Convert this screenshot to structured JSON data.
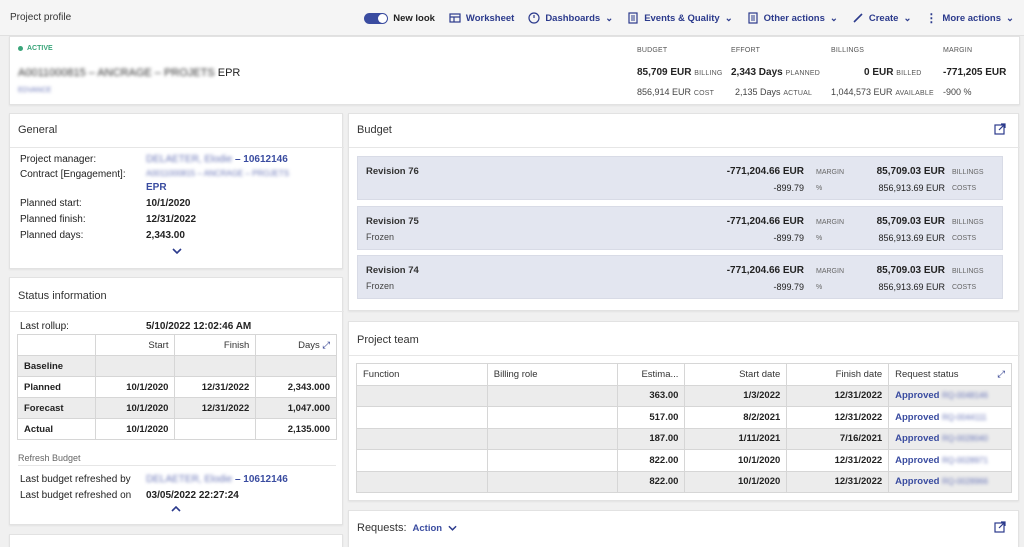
{
  "page": {
    "title": "Project profile"
  },
  "toolbar": {
    "new_look": "New look",
    "worksheet": "Worksheet",
    "dashboards": "Dashboards",
    "events_quality": "Events & Quality",
    "other_actions": "Other actions",
    "create": "Create",
    "more_actions": "More actions"
  },
  "header": {
    "status": "ACTIVE",
    "project_code": "A0011000815 – ANCRAGE – PROJETS",
    "project_suffix": "EPR",
    "sub_link": "EDVANCE",
    "kpis": {
      "budget_label": "BUDGET",
      "budget_value": "85,709 EUR",
      "budget_unit": "BILLING",
      "budget_value2": "856,914 EUR",
      "budget_unit2": "COST",
      "effort_label": "EFFORT",
      "effort_value": "2,343 Days",
      "effort_unit": "PLANNED",
      "effort_value2": "2,135 Days",
      "effort_unit2": "ACTUAL",
      "billings_label": "BILLINGS",
      "billings_value": "0 EUR",
      "billings_unit": "BILLED",
      "billings_value2": "1,044,573 EUR",
      "billings_unit2": "AVAILABLE",
      "margin_label": "MARGIN",
      "margin_value": "-771,205 EUR",
      "margin_value2": "-900 %"
    }
  },
  "general": {
    "title": "General",
    "project_manager_label": "Project manager:",
    "project_manager_name": "DELAETER, Elodie",
    "project_manager_id": "– 10612146",
    "contract_label": "Contract [Engagement]:",
    "contract_value": "A0011000815 – ANCRAGE – PROJETS",
    "contract_suffix": "EPR",
    "planned_start_label": "Planned start:",
    "planned_start": "10/1/2020",
    "planned_finish_label": "Planned finish:",
    "planned_finish": "12/31/2022",
    "planned_days_label": "Planned days:",
    "planned_days": "2,343.00"
  },
  "status_info": {
    "title": "Status information",
    "last_rollup_label": "Last rollup:",
    "last_rollup": "5/10/2022 12:02:46 AM",
    "columns": [
      "Start",
      "Finish",
      "Days"
    ],
    "rows": [
      {
        "label": "Baseline",
        "start": "",
        "finish": "",
        "days": ""
      },
      {
        "label": "Planned",
        "start": "10/1/2020",
        "finish": "12/31/2022",
        "days": "2,343.000"
      },
      {
        "label": "Forecast",
        "start": "10/1/2020",
        "finish": "12/31/2022",
        "days": "1,047.000"
      },
      {
        "label": "Actual",
        "start": "10/1/2020",
        "finish": "",
        "days": "2,135.000"
      }
    ],
    "refresh_budget": "Refresh Budget",
    "last_refreshed_by_label": "Last budget refreshed by",
    "last_refreshed_by_name": "DELAETER, Elodie",
    "last_refreshed_by_id": "– 10612146",
    "last_refreshed_on_label": "Last budget refreshed on",
    "last_refreshed_on": "03/05/2022 22:27:24"
  },
  "budget": {
    "title": "Budget",
    "revisions": [
      {
        "name": "Revision 76",
        "sub": "",
        "margin": "-771,204.66 EUR",
        "margin_label": "MARGIN",
        "margin_pct": "-899.79",
        "pct_label": "%",
        "billings": "85,709.03 EUR",
        "billings_label": "BILLINGS",
        "costs": "856,913.69 EUR",
        "costs_label": "COSTS"
      },
      {
        "name": "Revision 75",
        "sub": "Frozen",
        "margin": "-771,204.66 EUR",
        "margin_label": "MARGIN",
        "margin_pct": "-899.79",
        "pct_label": "%",
        "billings": "85,709.03 EUR",
        "billings_label": "BILLINGS",
        "costs": "856,913.69 EUR",
        "costs_label": "COSTS"
      },
      {
        "name": "Revision 74",
        "sub": "Frozen",
        "margin": "-771,204.66 EUR",
        "margin_label": "MARGIN",
        "margin_pct": "-899.79",
        "pct_label": "%",
        "billings": "85,709.03 EUR",
        "billings_label": "BILLINGS",
        "costs": "856,913.69 EUR",
        "costs_label": "COSTS"
      }
    ]
  },
  "team": {
    "title": "Project team",
    "columns": [
      "Function",
      "Billing role",
      "Estima...",
      "Start date",
      "Finish date",
      "Request status"
    ],
    "rows": [
      {
        "function": "",
        "role": "",
        "estimate": "363.00",
        "start": "1/3/2022",
        "finish": "12/31/2022",
        "status": "Approved",
        "req": "RQ-0048146"
      },
      {
        "function": "",
        "role": "",
        "estimate": "517.00",
        "start": "8/2/2021",
        "finish": "12/31/2022",
        "status": "Approved",
        "req": "RQ-0044111"
      },
      {
        "function": "",
        "role": "",
        "estimate": "187.00",
        "start": "1/11/2021",
        "finish": "7/16/2021",
        "status": "Approved",
        "req": "RQ-0028040"
      },
      {
        "function": "",
        "role": "",
        "estimate": "822.00",
        "start": "10/1/2020",
        "finish": "12/31/2022",
        "status": "Approved",
        "req": "RQ-0028971"
      },
      {
        "function": "",
        "role": "",
        "estimate": "822.00",
        "start": "10/1/2020",
        "finish": "12/31/2022",
        "status": "Approved",
        "req": "RQ-0028966"
      }
    ]
  },
  "requests": {
    "title": "Requests:",
    "action": "Action"
  },
  "colors": {
    "accent": "#2b3a8c",
    "active": "#3aa57a",
    "revision_bg": "#e3e6f0"
  }
}
